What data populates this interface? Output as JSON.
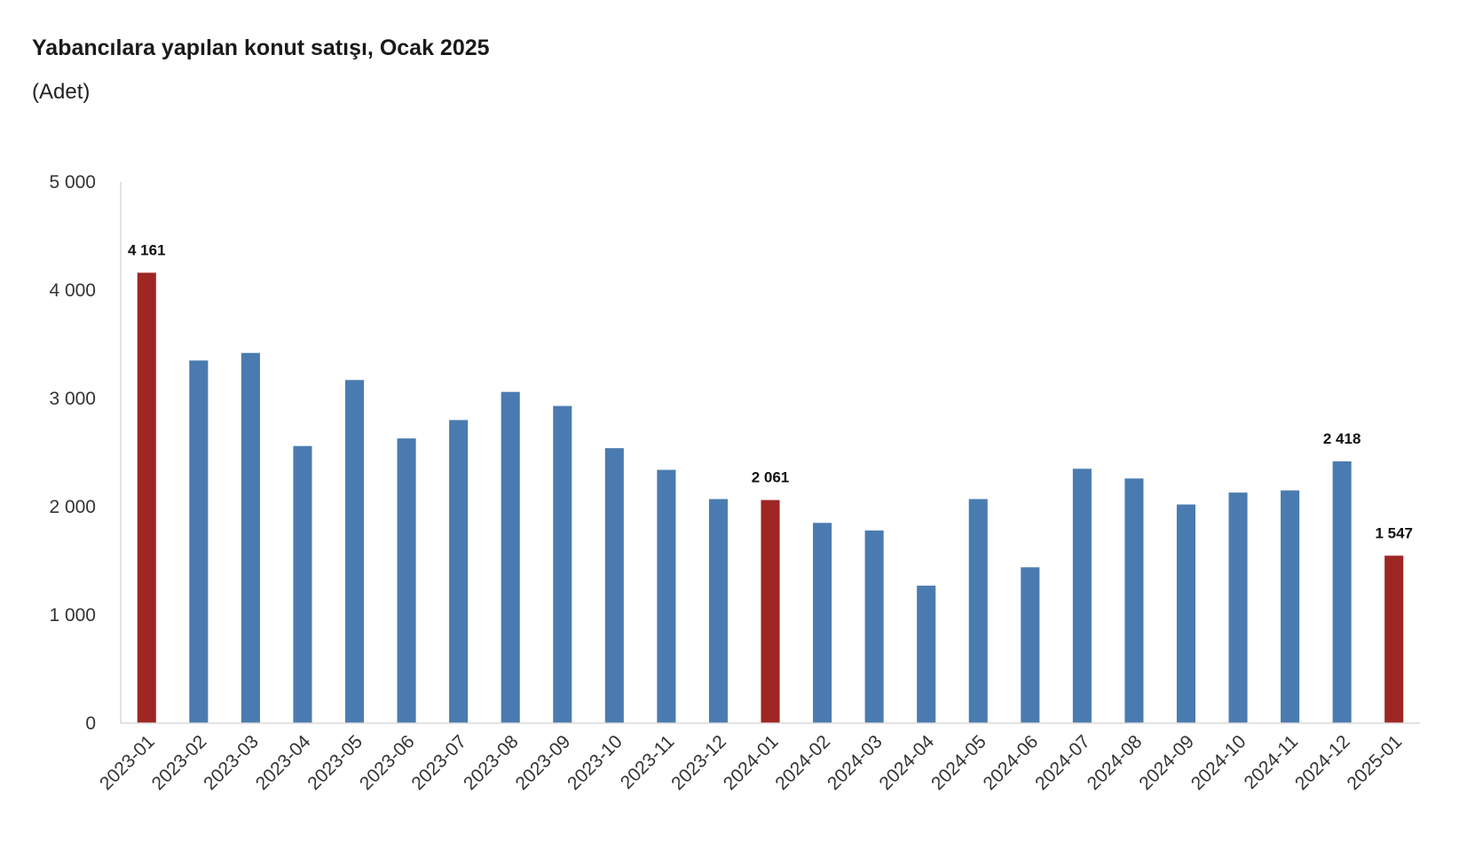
{
  "title": "Yabancılara yapılan konut satışı, Ocak 2025",
  "subtitle": "(Adet)",
  "colors": {
    "default_bar": "#4A7BB0",
    "highlight_bar": "#9E2623",
    "axis": "#d9d9d9",
    "text": "#333333"
  },
  "chart_data": {
    "type": "bar",
    "title": "Yabancılara yapılan konut satışı, Ocak 2025",
    "subtitle": "(Adet)",
    "xlabel": "",
    "ylabel": "",
    "ylim": [
      0,
      5000
    ],
    "yticks": [
      0,
      1000,
      2000,
      3000,
      4000,
      5000
    ],
    "ytick_labels": [
      "0",
      "1 000",
      "2 000",
      "3 000",
      "4 000",
      "5 000"
    ],
    "grid": false,
    "legend": "none",
    "categories": [
      "2023-01",
      "2023-02",
      "2023-03",
      "2023-04",
      "2023-05",
      "2023-06",
      "2023-07",
      "2023-08",
      "2023-09",
      "2023-10",
      "2023-11",
      "2023-12",
      "2024-01",
      "2024-02",
      "2024-03",
      "2024-04",
      "2024-05",
      "2024-06",
      "2024-07",
      "2024-08",
      "2024-09",
      "2024-10",
      "2024-11",
      "2024-12",
      "2025-01"
    ],
    "values": [
      4161,
      3350,
      3420,
      2560,
      3170,
      2630,
      2800,
      3060,
      2930,
      2540,
      2340,
      2070,
      2061,
      1850,
      1780,
      1270,
      2070,
      1440,
      2350,
      2260,
      2020,
      2130,
      2150,
      2418,
      1547
    ],
    "highlighted": [
      0,
      12,
      24
    ],
    "data_labels": [
      {
        "index": 0,
        "text": "4 161"
      },
      {
        "index": 12,
        "text": "2 061"
      },
      {
        "index": 23,
        "text": "2 418"
      },
      {
        "index": 24,
        "text": "1 547"
      }
    ]
  }
}
